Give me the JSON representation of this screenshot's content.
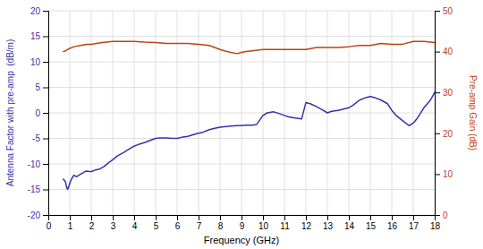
{
  "chart_data": {
    "type": "line",
    "xlabel": "Frequency (GHz)",
    "ylabel": "Antenna Factor with pre-amp  (dB/m)",
    "y2label": "Pre-amp Gain (dB)",
    "xlim": [
      0,
      18
    ],
    "ylim": [
      -20,
      20
    ],
    "y2lim": [
      0,
      50
    ],
    "xticks": [
      0,
      1,
      2,
      3,
      4,
      5,
      6,
      7,
      8,
      9,
      10,
      11,
      12,
      13,
      14,
      15,
      16,
      17,
      18
    ],
    "yticks": [
      -20,
      -15,
      -10,
      -5,
      0,
      5,
      10,
      15,
      20
    ],
    "y2ticks": [
      0,
      10,
      20,
      30,
      40,
      50
    ],
    "grid": true,
    "series": [
      {
        "color": "#3333aa",
        "x": [
          0.7,
          0.8,
          0.85,
          0.9,
          0.95,
          1.0,
          1.05,
          1.1,
          1.15,
          1.2,
          1.3,
          1.4,
          1.5,
          1.6,
          1.7,
          1.8,
          1.9,
          2.0,
          2.2,
          2.4,
          2.6,
          2.8,
          3.0,
          3.2,
          3.5,
          3.8,
          4.0,
          4.2,
          4.5,
          4.8,
          5.0,
          5.2,
          5.5,
          5.8,
          6.0,
          6.2,
          6.5,
          6.8,
          7.0,
          7.2,
          7.5,
          7.8,
          8.0,
          8.2,
          8.5,
          8.8,
          9.0,
          9.2,
          9.5,
          9.7,
          10.0,
          10.2,
          10.5,
          10.8,
          11.0,
          11.2,
          11.5,
          11.8,
          12.0,
          12.2,
          12.5,
          12.8,
          13.0,
          13.2,
          13.5,
          13.8,
          14.0,
          14.2,
          14.5,
          14.8,
          15.0,
          15.2,
          15.5,
          15.8,
          16.0,
          16.2,
          16.5,
          16.8,
          17.0,
          17.2,
          17.5,
          17.8,
          18.0
        ],
        "values": [
          -13.0,
          -13.5,
          -14.5,
          -15.0,
          -14.5,
          -13.8,
          -13.3,
          -12.8,
          -12.5,
          -12.2,
          -12.5,
          -12.3,
          -12.0,
          -11.8,
          -11.5,
          -11.4,
          -11.5,
          -11.5,
          -11.2,
          -11.0,
          -10.5,
          -9.8,
          -9.2,
          -8.5,
          -7.8,
          -7.0,
          -6.5,
          -6.2,
          -5.8,
          -5.3,
          -5.0,
          -4.9,
          -4.9,
          -5.0,
          -5.0,
          -4.8,
          -4.6,
          -4.2,
          -4.0,
          -3.8,
          -3.3,
          -3.0,
          -2.8,
          -2.7,
          -2.6,
          -2.5,
          -2.5,
          -2.4,
          -2.4,
          -2.3,
          -0.5,
          0.0,
          0.2,
          -0.2,
          -0.5,
          -0.8,
          -1.0,
          -1.2,
          2.0,
          1.8,
          1.2,
          0.5,
          0.0,
          0.3,
          0.5,
          0.8,
          1.0,
          1.5,
          2.5,
          3.0,
          3.2,
          3.0,
          2.5,
          1.8,
          0.5,
          -0.5,
          -1.5,
          -2.5,
          -2.0,
          -1.0,
          1.0,
          2.5,
          4.0
        ]
      },
      {
        "color": "#bb4411",
        "axis": "y2",
        "x": [
          0.7,
          0.8,
          0.9,
          1.0,
          1.2,
          1.5,
          1.8,
          2.0,
          2.5,
          3.0,
          3.5,
          4.0,
          4.5,
          5.0,
          5.5,
          6.0,
          6.5,
          7.0,
          7.5,
          8.0,
          8.2,
          8.5,
          8.8,
          9.0,
          9.2,
          9.5,
          10.0,
          10.5,
          11.0,
          11.5,
          12.0,
          12.5,
          13.0,
          13.5,
          14.0,
          14.5,
          15.0,
          15.5,
          16.0,
          16.5,
          17.0,
          17.5,
          18.0
        ],
        "values": [
          40.0,
          40.2,
          40.5,
          40.8,
          41.2,
          41.5,
          41.8,
          41.8,
          42.2,
          42.5,
          42.5,
          42.5,
          42.3,
          42.2,
          42.0,
          42.0,
          42.0,
          41.8,
          41.5,
          40.5,
          40.2,
          39.8,
          39.5,
          39.8,
          40.0,
          40.2,
          40.5,
          40.5,
          40.5,
          40.5,
          40.5,
          41.0,
          41.0,
          41.0,
          41.2,
          41.5,
          41.5,
          42.0,
          41.8,
          41.8,
          42.5,
          42.5,
          42.2
        ]
      }
    ]
  }
}
